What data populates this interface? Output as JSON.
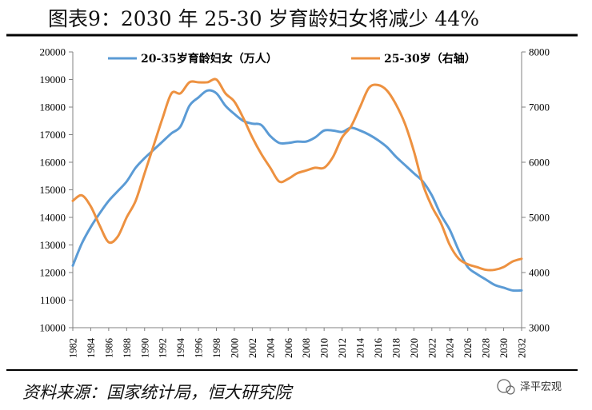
{
  "title": "图表9：2030 年 25-30 岁育龄妇女将减少 44%",
  "source": "资料来源：国家统计局，恒大研究院",
  "watermark": "泽平宏观",
  "colors": {
    "series1": "#5b9bd5",
    "series2": "#ed9140",
    "rule": "#000000",
    "axis": "#808080"
  },
  "chart_data": {
    "type": "line",
    "grid": false,
    "legend_position": "top",
    "xlim": [
      1982,
      2032
    ],
    "ylim_left": [
      10000,
      20000
    ],
    "ylim_right": [
      3000,
      8000
    ],
    "y_ticks_left": [
      "20000",
      "19000",
      "18000",
      "17000",
      "16000",
      "15000",
      "14000",
      "13000",
      "12000",
      "11000",
      "10000"
    ],
    "y_ticks_right": [
      "8000",
      "7000",
      "6000",
      "5000",
      "4000",
      "3000"
    ],
    "x_tick_labels": [
      "1982",
      "1984",
      "1986",
      "1988",
      "1990",
      "1992",
      "1994",
      "1996",
      "1998",
      "2000",
      "2002",
      "2004",
      "2006",
      "2008",
      "2010",
      "2012",
      "2014",
      "2016",
      "2018",
      "2020",
      "2022",
      "2024",
      "2026",
      "2028",
      "2030",
      "2032"
    ],
    "series": [
      {
        "name": "20-35岁育龄妇女（万人）",
        "axis": "left",
        "color": "#5b9bd5",
        "x": [
          1982,
          1983,
          1984,
          1985,
          1986,
          1987,
          1988,
          1989,
          1990,
          1991,
          1992,
          1993,
          1994,
          1995,
          1996,
          1997,
          1998,
          1999,
          2000,
          2001,
          2002,
          2003,
          2004,
          2005,
          2006,
          2007,
          2008,
          2009,
          2010,
          2011,
          2012,
          2013,
          2014,
          2015,
          2016,
          2017,
          2018,
          2019,
          2020,
          2021,
          2022,
          2023,
          2024,
          2025,
          2026,
          2027,
          2028,
          2029,
          2030,
          2031,
          2032
        ],
        "values": [
          12250,
          13050,
          13650,
          14150,
          14600,
          14950,
          15300,
          15800,
          16150,
          16450,
          16750,
          17050,
          17300,
          18050,
          18350,
          18600,
          18500,
          18050,
          17750,
          17500,
          17400,
          17350,
          16950,
          16700,
          16700,
          16750,
          16750,
          16900,
          17150,
          17150,
          17100,
          17250,
          17150,
          17000,
          16800,
          16550,
          16200,
          15900,
          15600,
          15300,
          14800,
          14100,
          13550,
          12800,
          12200,
          11950,
          11750,
          11550,
          11450,
          11350,
          11350
        ]
      },
      {
        "name": "25-30岁（右轴）",
        "axis": "right",
        "color": "#ed9140",
        "x": [
          1982,
          1983,
          1984,
          1985,
          1986,
          1987,
          1988,
          1989,
          1990,
          1991,
          1992,
          1993,
          1994,
          1995,
          1996,
          1997,
          1998,
          1999,
          2000,
          2001,
          2002,
          2003,
          2004,
          2005,
          2006,
          2007,
          2008,
          2009,
          2010,
          2011,
          2012,
          2013,
          2014,
          2015,
          2016,
          2017,
          2018,
          2019,
          2020,
          2021,
          2022,
          2023,
          2024,
          2025,
          2026,
          2027,
          2028,
          2029,
          2030,
          2031,
          2032
        ],
        "values": [
          5300,
          5400,
          5200,
          4850,
          4550,
          4650,
          5000,
          5300,
          5800,
          6300,
          6800,
          7250,
          7250,
          7450,
          7450,
          7450,
          7500,
          7250,
          7100,
          6800,
          6450,
          6150,
          5900,
          5650,
          5700,
          5800,
          5850,
          5900,
          5900,
          6100,
          6450,
          6650,
          7000,
          7350,
          7400,
          7300,
          7050,
          6700,
          6200,
          5600,
          5200,
          4900,
          4500,
          4250,
          4150,
          4100,
          4050,
          4050,
          4100,
          4200,
          4250
        ]
      }
    ]
  }
}
